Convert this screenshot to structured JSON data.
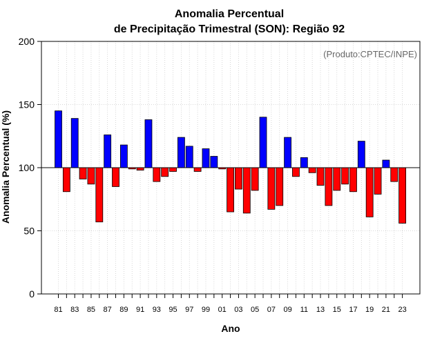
{
  "chart_data": {
    "type": "bar",
    "title": "Anomalia Percentual",
    "subtitle": "de Precipitação Trimestral (SON): Região 92",
    "xlabel": "Ano",
    "ylabel": "Anomalia Percentual (%)",
    "annotation": "(Produto:CPTEC/INPE)",
    "baseline": 100,
    "ylim": [
      0,
      200
    ],
    "yticks": [
      0,
      50,
      100,
      150,
      200
    ],
    "grid": true,
    "colors": {
      "above": "#0000ff",
      "below": "#ff0000",
      "edge": "#000000",
      "grid": "#cccccc"
    },
    "categories": [
      "81",
      "82",
      "83",
      "84",
      "85",
      "86",
      "87",
      "88",
      "89",
      "90",
      "91",
      "92",
      "93",
      "94",
      "95",
      "96",
      "97",
      "98",
      "99",
      "00",
      "01",
      "02",
      "03",
      "04",
      "05",
      "06",
      "07",
      "08",
      "09",
      "10",
      "11",
      "12",
      "13",
      "14",
      "15",
      "16",
      "17",
      "18",
      "19",
      "20",
      "21",
      "22",
      "23"
    ],
    "xtick_labels": [
      "81",
      "83",
      "85",
      "87",
      "89",
      "91",
      "93",
      "95",
      "97",
      "99",
      "01",
      "03",
      "05",
      "07",
      "09",
      "11",
      "13",
      "15",
      "17",
      "19",
      "21",
      "23"
    ],
    "values": [
      145,
      81,
      139,
      91,
      87,
      57,
      126,
      85,
      118,
      99,
      98,
      138,
      89,
      93,
      97,
      124,
      117,
      97,
      115,
      109,
      99,
      65,
      83,
      64,
      82,
      140,
      67,
      70,
      124,
      93,
      108,
      96,
      86,
      70,
      82,
      87,
      81,
      121,
      61,
      79,
      106,
      89,
      56
    ]
  }
}
